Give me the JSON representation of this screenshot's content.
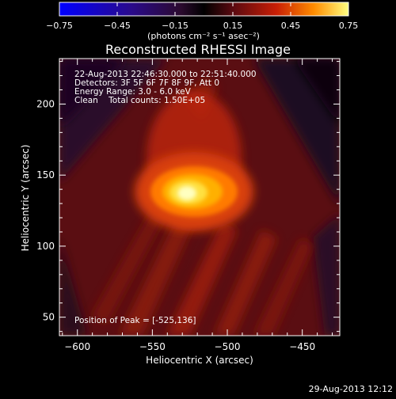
{
  "colorbar": {
    "ticks": [
      "-0.75",
      "-0.45",
      "-0.15",
      "0.15",
      "0.45",
      "0.75"
    ],
    "unit_label": "(photons cm⁻² s⁻¹ asec⁻²)",
    "range": [
      -0.75,
      0.75
    ]
  },
  "chart_data": {
    "type": "heatmap",
    "title": "Reconstructed RHESSI Image",
    "xlabel": "Heliocentric X (arcsec)",
    "ylabel": "Heliocentric Y (arcsec)",
    "xlim": [
      -612,
      -425
    ],
    "ylim": [
      37,
      232
    ],
    "x_ticks": [
      -600,
      -550,
      -500,
      -450
    ],
    "y_ticks": [
      50,
      100,
      150,
      200
    ],
    "x_tick_labels": [
      "−600",
      "−550",
      "−500",
      "−450"
    ],
    "y_tick_labels": [
      "50",
      "100",
      "150",
      "200"
    ],
    "peak": {
      "x": -525,
      "y": 136,
      "value": 0.75
    },
    "colormap": "hot (black-purple-red-orange-yellow-white)",
    "annotations": {
      "time_range": "22-Aug-2013 22:46:30.000 to 22:51:40.000",
      "detectors": "Detectors: 3F 5F 6F 7F 8F 9F, Att 0",
      "energy_range": "Energy Range: 3.0 - 6.0 keV",
      "clean_counts": "Clean    Total counts: 1.50E+05",
      "peak_position": "Position of Peak = [-525,136]"
    }
  },
  "footer": {
    "timestamp": "29-Aug-2013 12:12"
  }
}
